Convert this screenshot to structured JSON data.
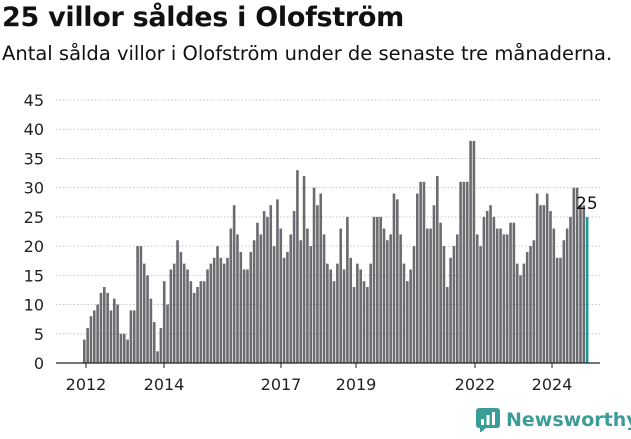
{
  "title": "25 villor såldes i Olofström",
  "subtitle": "Antal sålda villor i Olofström under de senaste tre månaderna.",
  "brand": {
    "name": "Newsworthy",
    "icon": "newsworthy-logo-icon",
    "color": "#3c9c98"
  },
  "colors": {
    "bar": "#6b6b70",
    "highlight": "#1a9a97",
    "grid": "#c7c7c7"
  },
  "chart_data": {
    "type": "bar",
    "title": "25 villor såldes i Olofström",
    "xlabel": "",
    "ylabel": "",
    "ylim": [
      0,
      45
    ],
    "yticks": [
      0,
      5,
      10,
      15,
      20,
      25,
      30,
      35,
      40,
      45
    ],
    "xticks": [
      "2012",
      "2014",
      "2017",
      "2019",
      "2022",
      "2024"
    ],
    "grid": true,
    "annotation": {
      "label": "25",
      "value": 25,
      "target": "last"
    },
    "values": [
      4,
      6,
      8,
      9,
      10,
      12,
      13,
      12,
      9,
      11,
      10,
      5,
      5,
      4,
      9,
      9,
      20,
      20,
      17,
      15,
      11,
      7,
      2,
      6,
      14,
      10,
      16,
      17,
      21,
      19,
      17,
      16,
      14,
      12,
      13,
      14,
      14,
      16,
      17,
      18,
      20,
      18,
      17,
      18,
      23,
      27,
      22,
      19,
      16,
      16,
      19,
      21,
      24,
      22,
      26,
      25,
      27,
      20,
      28,
      23,
      18,
      19,
      22,
      26,
      33,
      21,
      32,
      23,
      20,
      30,
      27,
      29,
      22,
      17,
      16,
      14,
      17,
      23,
      16,
      25,
      18,
      13,
      17,
      16,
      14,
      13,
      17,
      25,
      25,
      25,
      23,
      21,
      22,
      29,
      28,
      22,
      17,
      14,
      16,
      20,
      29,
      31,
      31,
      23,
      23,
      27,
      32,
      24,
      20,
      13,
      18,
      20,
      22,
      31,
      31,
      31,
      38,
      38,
      22,
      20,
      25,
      26,
      27,
      25,
      23,
      23,
      22,
      22,
      24,
      24,
      17,
      15,
      17,
      19,
      20,
      21,
      29,
      27,
      27,
      29,
      26,
      23,
      18,
      18,
      21,
      23,
      25,
      30,
      30,
      27,
      27,
      25
    ]
  }
}
